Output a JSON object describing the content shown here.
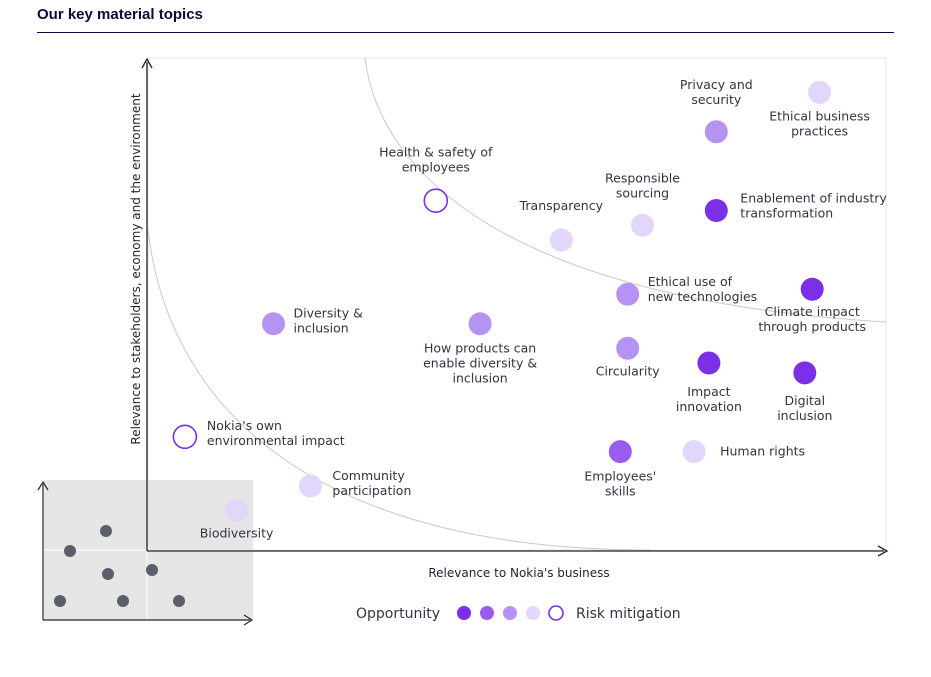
{
  "page_title": "Our key material topics",
  "colors": {
    "opportunity_strong": "#7b2fe6",
    "opportunity_medium": "#9a5cf0",
    "neutral": "#b593f2",
    "risk_medium": "#e2d6fb",
    "risk_strong_outline": "#7b2fe6",
    "axis": "#222233",
    "curve": "#c8c8c8",
    "inset_bg": "#e6e6e6",
    "inset_dot": "#5b5f6b"
  },
  "chart_data": {
    "type": "scatter",
    "title": "",
    "xlabel": "Relevance to Nokia's business",
    "ylabel": "Relevance to stakeholders, economy and the environment",
    "xlim": [
      0,
      100
    ],
    "ylim": [
      0,
      100
    ],
    "grid": false,
    "legend": {
      "placement": "bottom-center",
      "left_label": "Opportunity",
      "right_label": "Risk mitigation",
      "levels": [
        "opportunity_strong",
        "opportunity_medium",
        "neutral",
        "risk_medium",
        "risk_strong"
      ]
    },
    "points": [
      {
        "label": [
          "Privacy and",
          "security"
        ],
        "x": 77,
        "y": 85,
        "level": "neutral"
      },
      {
        "label": [
          "Ethical business",
          "practices"
        ],
        "x": 91,
        "y": 93,
        "level": "risk_medium"
      },
      {
        "label": [
          "Health & safety of",
          "employees"
        ],
        "x": 39,
        "y": 71,
        "level": "risk_strong"
      },
      {
        "label": [
          "Responsible",
          "sourcing"
        ],
        "x": 67,
        "y": 66,
        "level": "risk_medium"
      },
      {
        "label": [
          "Transparency"
        ],
        "x": 56,
        "y": 63,
        "level": "risk_medium"
      },
      {
        "label": [
          "Enablement of industry",
          "transformation"
        ],
        "x": 77,
        "y": 69,
        "level": "opportunity_strong"
      },
      {
        "label": [
          "Ethical use of",
          "new technologies"
        ],
        "x": 65,
        "y": 52,
        "level": "neutral"
      },
      {
        "label": [
          "Climate impact",
          "through products"
        ],
        "x": 90,
        "y": 53,
        "level": "opportunity_strong"
      },
      {
        "label": [
          "Diversity &",
          "inclusion"
        ],
        "x": 17,
        "y": 46,
        "level": "neutral"
      },
      {
        "label": [
          "How products can",
          "enable diversity &",
          "inclusion"
        ],
        "x": 45,
        "y": 46,
        "level": "neutral"
      },
      {
        "label": [
          "Circularity"
        ],
        "x": 65,
        "y": 41,
        "level": "neutral"
      },
      {
        "label": [
          "Impact",
          "innovation"
        ],
        "x": 76,
        "y": 38,
        "level": "opportunity_strong"
      },
      {
        "label": [
          "Digital",
          "inclusion"
        ],
        "x": 89,
        "y": 36,
        "level": "opportunity_strong"
      },
      {
        "label": [
          "Nokia's own",
          "environmental impact"
        ],
        "x": 5,
        "y": 23,
        "level": "risk_strong"
      },
      {
        "label": [
          "Human rights"
        ],
        "x": 74,
        "y": 20,
        "level": "risk_medium"
      },
      {
        "label": [
          "Employees'",
          "skills"
        ],
        "x": 64,
        "y": 20,
        "level": "opportunity_medium"
      },
      {
        "label": [
          "Community",
          "participation"
        ],
        "x": 22,
        "y": 13,
        "level": "risk_medium"
      },
      {
        "label": [
          "Biodiversity"
        ],
        "x": 12,
        "y": 8,
        "level": "risk_medium"
      }
    ]
  }
}
